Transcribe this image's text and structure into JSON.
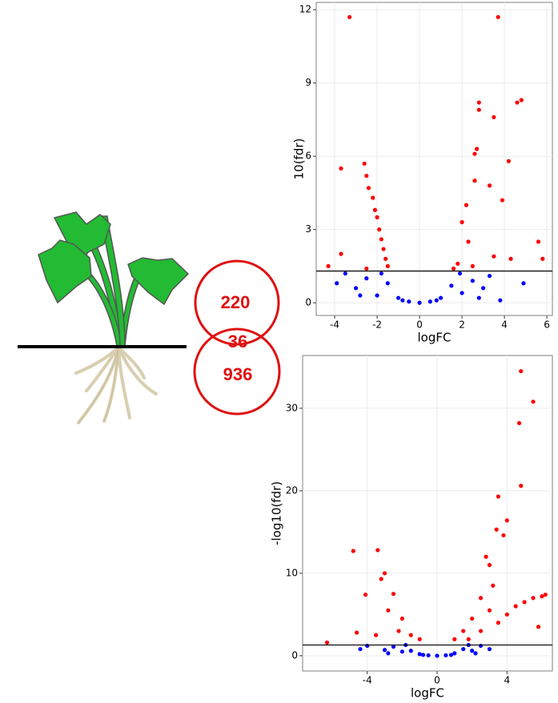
{
  "venn": {
    "top": "220",
    "overlap": "36",
    "bottom": "936"
  },
  "chart_data": [
    {
      "type": "scatter",
      "xlabel": "logFC",
      "ylabel": "10(fdr)",
      "xlim": [
        -4.87,
        6.26
      ],
      "ylim": [
        -0.52,
        12.3
      ],
      "xticks": [
        -4,
        -2,
        0,
        2,
        4,
        6
      ],
      "yticks": [
        0,
        3,
        6,
        9,
        12
      ],
      "grid": true,
      "hline": 1.3,
      "series": [
        {
          "color": "#ff0000",
          "x": [
            -3.3,
            3.7,
            4.8,
            4.6,
            2.8,
            2.8,
            3.5,
            2.7,
            2.6,
            4.2,
            -2.6,
            -3.7,
            -2.5,
            2.6,
            -2.4,
            3.3,
            3.9,
            -2.2,
            2.2,
            -2.1,
            -2.0,
            2.0,
            -1.9,
            -1.8,
            5.6,
            -3.7,
            -1.7,
            2.3,
            -1.6,
            3.5,
            5.8,
            4.3,
            -1.5,
            1.8,
            -4.3,
            2.5,
            -2.5,
            1.6
          ],
          "values": [
            11.7,
            11.7,
            8.3,
            8.2,
            8.2,
            7.9,
            7.6,
            6.3,
            6.1,
            5.8,
            5.7,
            5.5,
            5.2,
            5.0,
            4.7,
            4.8,
            4.2,
            4.3,
            4.0,
            3.8,
            3.5,
            3.3,
            3.0,
            2.6,
            2.5,
            2.0,
            2.2,
            2.5,
            1.8,
            1.9,
            1.8,
            1.8,
            1.5,
            1.6,
            1.5,
            1.5,
            1.4,
            1.4
          ]
        },
        {
          "color": "#0000ff",
          "x": [
            -3.9,
            -3.5,
            -3.0,
            -2.5,
            -2.0,
            -1.5,
            -1.0,
            -0.5,
            0,
            0.5,
            1.0,
            1.5,
            2.0,
            2.5,
            3.0,
            3.3,
            3.8,
            4.9,
            -1.8,
            1.9,
            -2.8,
            2.8,
            -0.8,
            0.8
          ],
          "values": [
            0.8,
            1.2,
            0.6,
            1.0,
            0.3,
            0.8,
            0.2,
            0.05,
            0,
            0.05,
            0.2,
            0.7,
            0.4,
            0.9,
            0.6,
            1.1,
            0.1,
            0.8,
            1.2,
            1.2,
            0.3,
            0.2,
            0.1,
            0.1
          ]
        }
      ]
    },
    {
      "type": "scatter",
      "xlabel": "logFC",
      "ylabel": "-log10(fdr)",
      "xlim": [
        -7.7,
        6.6
      ],
      "ylim": [
        -1.85,
        36.4
      ],
      "xticks": [
        -4,
        0,
        4
      ],
      "yticks": [
        0,
        10,
        20,
        30
      ],
      "grid": true,
      "hline": 1.3,
      "series": [
        {
          "color": "#ff0000",
          "x": [
            4.8,
            5.5,
            4.7,
            4.8,
            3.5,
            4.0,
            3.4,
            3.8,
            -3.4,
            -4.8,
            2.8,
            3.0,
            -3.0,
            -3.2,
            -4.1,
            -2.5,
            3.2,
            4.5,
            5.0,
            5.5,
            6.0,
            6.2,
            4.0,
            3.0,
            2.0,
            -2.0,
            -2.2,
            -1.5,
            -3.5,
            1.5,
            1.0,
            -1.0,
            2.5,
            -6.3,
            -4.6,
            3.5,
            2.5,
            -2.8,
            5.8,
            1.8
          ],
          "values": [
            34.5,
            30.8,
            28.2,
            20.6,
            19.3,
            16.4,
            15.3,
            14.6,
            12.8,
            12.7,
            12,
            11,
            10,
            9.3,
            7.4,
            7.5,
            8.5,
            6,
            6.5,
            7,
            7.2,
            7.4,
            5,
            5.5,
            4.5,
            4.5,
            3,
            2.5,
            2.5,
            3,
            2,
            2,
            3,
            1.6,
            2.8,
            4,
            7,
            5.5,
            3.5,
            2
          ]
        },
        {
          "color": "#0000ff",
          "x": [
            -4.4,
            -4.0,
            -3.0,
            -2.5,
            -2.0,
            -1.5,
            -1.0,
            -0.5,
            0,
            0.5,
            1.0,
            1.5,
            2.0,
            2.5,
            3.0,
            2.2,
            -2.8,
            -0.8,
            0.8,
            1.8,
            -1.8
          ],
          "values": [
            0.8,
            1.2,
            0.7,
            1.1,
            0.5,
            0.6,
            0.2,
            0.05,
            0,
            0.05,
            0.3,
            0.8,
            0.6,
            1.2,
            0.8,
            0.3,
            0.3,
            0.1,
            0.1,
            1.3,
            1.3
          ]
        }
      ]
    }
  ]
}
